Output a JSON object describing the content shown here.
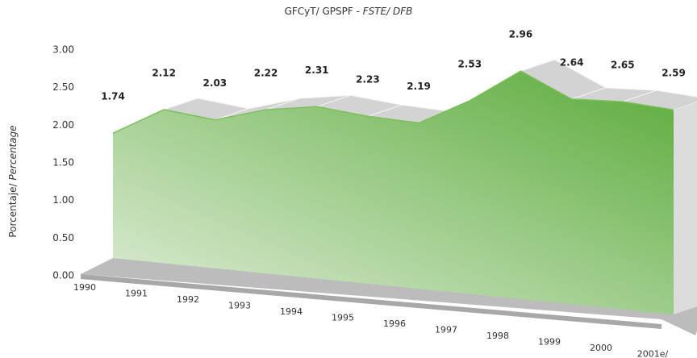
{
  "chart_data": {
    "type": "area3d",
    "title": {
      "main": "GFCyT/ GPSPF -",
      "italic": "FSTE/ DFB"
    },
    "ylabel": {
      "main": "Porcentaje/",
      "italic": "Percentage"
    },
    "categories": [
      "1990",
      "1991",
      "1992",
      "1993",
      "1994",
      "1995",
      "1996",
      "1997",
      "1998",
      "1999",
      "2000",
      "2001e/"
    ],
    "values": [
      1.74,
      2.12,
      2.03,
      2.22,
      2.31,
      2.23,
      2.19,
      2.53,
      2.96,
      2.64,
      2.65,
      2.59
    ],
    "color": "#5aab3a",
    "ylim": [
      0,
      3
    ],
    "yticks": [
      {
        "value": 0,
        "label": "0.00"
      },
      {
        "value": 0.5,
        "label": "0.50"
      },
      {
        "value": 1,
        "label": "1.00"
      },
      {
        "value": 1.5,
        "label": "1.50"
      },
      {
        "value": 2,
        "label": "2.00"
      },
      {
        "value": 2.5,
        "label": "2.50"
      },
      {
        "value": 3,
        "label": "3.00"
      }
    ]
  }
}
